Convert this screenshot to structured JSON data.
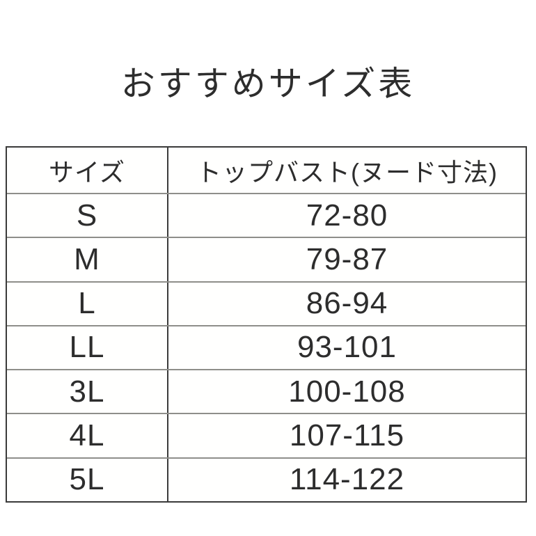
{
  "title": "おすすめサイズ表",
  "chart_data": {
    "type": "table",
    "title": "おすすめサイズ表",
    "columns": [
      "サイズ",
      "トップバスト(ヌード寸法)"
    ],
    "rows": [
      [
        "S",
        "72-80"
      ],
      [
        "M",
        "79-87"
      ],
      [
        "L",
        "86-94"
      ],
      [
        "LL",
        "93-101"
      ],
      [
        "3L",
        "100-108"
      ],
      [
        "4L",
        "107-115"
      ],
      [
        "5L",
        "114-122"
      ]
    ]
  },
  "colors": {
    "background": "#ffffff",
    "text": "#2d2d2d",
    "outer_border": "#3a3a3a",
    "column_divider": "#3a3a3a",
    "row_separator": "#8e8e8a"
  }
}
